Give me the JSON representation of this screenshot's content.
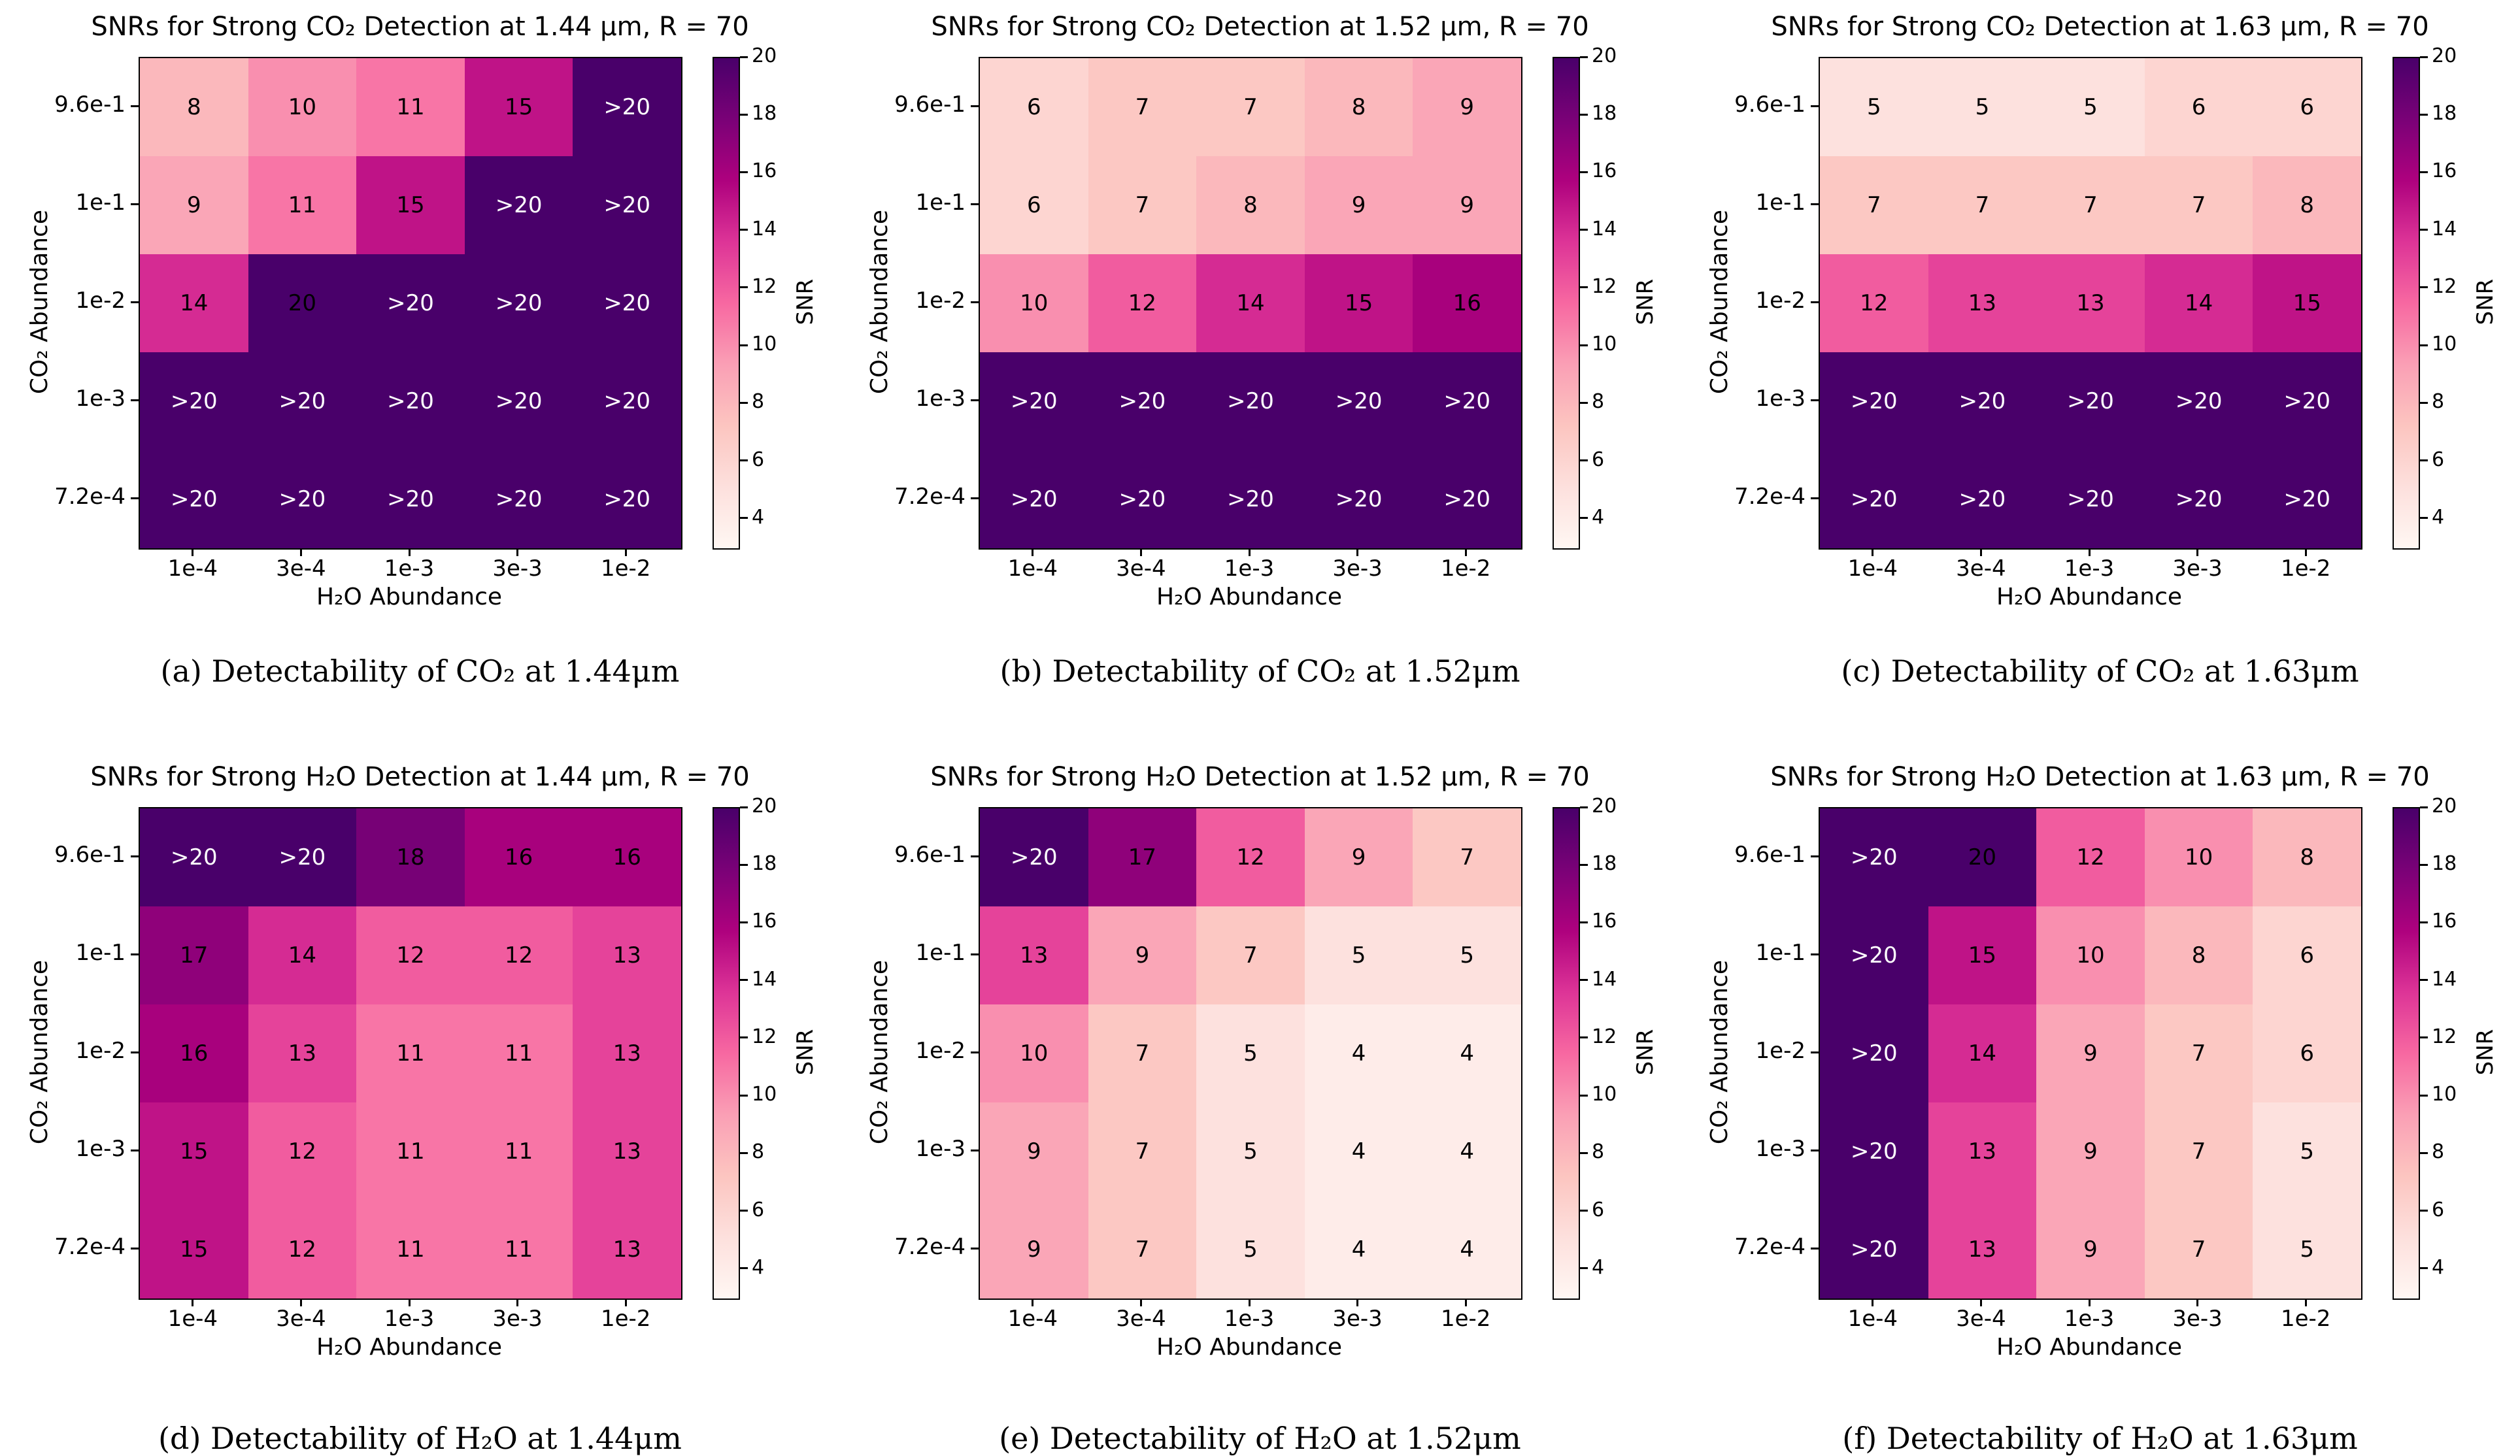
{
  "figure": {
    "background": "#ffffff",
    "colormap": "RdPu",
    "colorbar": {
      "label": "SNR",
      "ticks": [
        4,
        6,
        8,
        10,
        12,
        14,
        16,
        18,
        20
      ],
      "vmin": 3,
      "vmax": 20
    },
    "annotation_color_dark_cells": "#ffffff",
    "annotation_color_light_cells": "#000000",
    "colormap_dark_hex": "#49006a",
    "colormap_light_hex": "#fff7f3"
  },
  "chart_data": [
    {
      "id": "a",
      "type": "heatmap",
      "title": "SNRs for Strong CO₂ Detection at 1.44 μm, R = 70",
      "caption": "(a) Detectability of CO₂ at 1.44μm",
      "xlabel": "H₂O Abundance",
      "ylabel": "CO₂ Abundance",
      "x": [
        "1e-4",
        "3e-4",
        "1e-3",
        "3e-3",
        "1e-2"
      ],
      "y": [
        "9.6e-1",
        "1e-1",
        "1e-2",
        "1e-3",
        "7.2e-4"
      ],
      "values": [
        [
          8,
          10,
          11,
          15,
          ">20"
        ],
        [
          9,
          11,
          15,
          ">20",
          ">20"
        ],
        [
          14,
          20,
          ">20",
          ">20",
          ">20"
        ],
        [
          ">20",
          ">20",
          ">20",
          ">20",
          ">20"
        ],
        [
          ">20",
          ">20",
          ">20",
          ">20",
          ">20"
        ]
      ]
    },
    {
      "id": "b",
      "type": "heatmap",
      "title": "SNRs for Strong CO₂ Detection at 1.52 μm, R = 70",
      "caption": "(b) Detectability of CO₂ at 1.52μm",
      "xlabel": "H₂O Abundance",
      "ylabel": "CO₂ Abundance",
      "x": [
        "1e-4",
        "3e-4",
        "1e-3",
        "3e-3",
        "1e-2"
      ],
      "y": [
        "9.6e-1",
        "1e-1",
        "1e-2",
        "1e-3",
        "7.2e-4"
      ],
      "values": [
        [
          6,
          7,
          7,
          8,
          9
        ],
        [
          6,
          7,
          8,
          9,
          9
        ],
        [
          10,
          12,
          14,
          15,
          16
        ],
        [
          ">20",
          ">20",
          ">20",
          ">20",
          ">20"
        ],
        [
          ">20",
          ">20",
          ">20",
          ">20",
          ">20"
        ]
      ]
    },
    {
      "id": "c",
      "type": "heatmap",
      "title": "SNRs for Strong CO₂ Detection at 1.63 μm, R = 70",
      "caption": "(c) Detectability of CO₂ at 1.63μm",
      "xlabel": "H₂O Abundance",
      "ylabel": "CO₂ Abundance",
      "x": [
        "1e-4",
        "3e-4",
        "1e-3",
        "3e-3",
        "1e-2"
      ],
      "y": [
        "9.6e-1",
        "1e-1",
        "1e-2",
        "1e-3",
        "7.2e-4"
      ],
      "values": [
        [
          5,
          5,
          5,
          6,
          6
        ],
        [
          7,
          7,
          7,
          7,
          8
        ],
        [
          12,
          13,
          13,
          14,
          15
        ],
        [
          ">20",
          ">20",
          ">20",
          ">20",
          ">20"
        ],
        [
          ">20",
          ">20",
          ">20",
          ">20",
          ">20"
        ]
      ]
    },
    {
      "id": "d",
      "type": "heatmap",
      "title": "SNRs for Strong H₂O Detection at 1.44 μm, R = 70",
      "caption": "(d) Detectability of H₂O at 1.44μm",
      "xlabel": "H₂O Abundance",
      "ylabel": "CO₂ Abundance",
      "x": [
        "1e-4",
        "3e-4",
        "1e-3",
        "3e-3",
        "1e-2"
      ],
      "y": [
        "9.6e-1",
        "1e-1",
        "1e-2",
        "1e-3",
        "7.2e-4"
      ],
      "values": [
        [
          ">20",
          ">20",
          18,
          16,
          16
        ],
        [
          17,
          14,
          12,
          12,
          13
        ],
        [
          16,
          13,
          11,
          11,
          13
        ],
        [
          15,
          12,
          11,
          11,
          13
        ],
        [
          15,
          12,
          11,
          11,
          13
        ]
      ]
    },
    {
      "id": "e",
      "type": "heatmap",
      "title": "SNRs for Strong H₂O Detection at 1.52 μm, R = 70",
      "caption": "(e) Detectability of H₂O at 1.52μm",
      "xlabel": "H₂O Abundance",
      "ylabel": "CO₂ Abundance",
      "x": [
        "1e-4",
        "3e-4",
        "1e-3",
        "3e-3",
        "1e-2"
      ],
      "y": [
        "9.6e-1",
        "1e-1",
        "1e-2",
        "1e-3",
        "7.2e-4"
      ],
      "values": [
        [
          ">20",
          17,
          12,
          9,
          7
        ],
        [
          13,
          9,
          7,
          5,
          5
        ],
        [
          10,
          7,
          5,
          4,
          4
        ],
        [
          9,
          7,
          5,
          4,
          4
        ],
        [
          9,
          7,
          5,
          4,
          4
        ]
      ]
    },
    {
      "id": "f",
      "type": "heatmap",
      "title": "SNRs for Strong H₂O Detection at 1.63 μm, R = 70",
      "caption": "(f) Detectability of H₂O at 1.63μm",
      "xlabel": "H₂O Abundance",
      "ylabel": "CO₂ Abundance",
      "x": [
        "1e-4",
        "3e-4",
        "1e-3",
        "3e-3",
        "1e-2"
      ],
      "y": [
        "9.6e-1",
        "1e-1",
        "1e-2",
        "1e-3",
        "7.2e-4"
      ],
      "values": [
        [
          ">20",
          20,
          12,
          10,
          8
        ],
        [
          ">20",
          15,
          10,
          8,
          6
        ],
        [
          ">20",
          14,
          9,
          7,
          6
        ],
        [
          ">20",
          13,
          9,
          7,
          5
        ],
        [
          ">20",
          13,
          9,
          7,
          5
        ]
      ]
    }
  ]
}
